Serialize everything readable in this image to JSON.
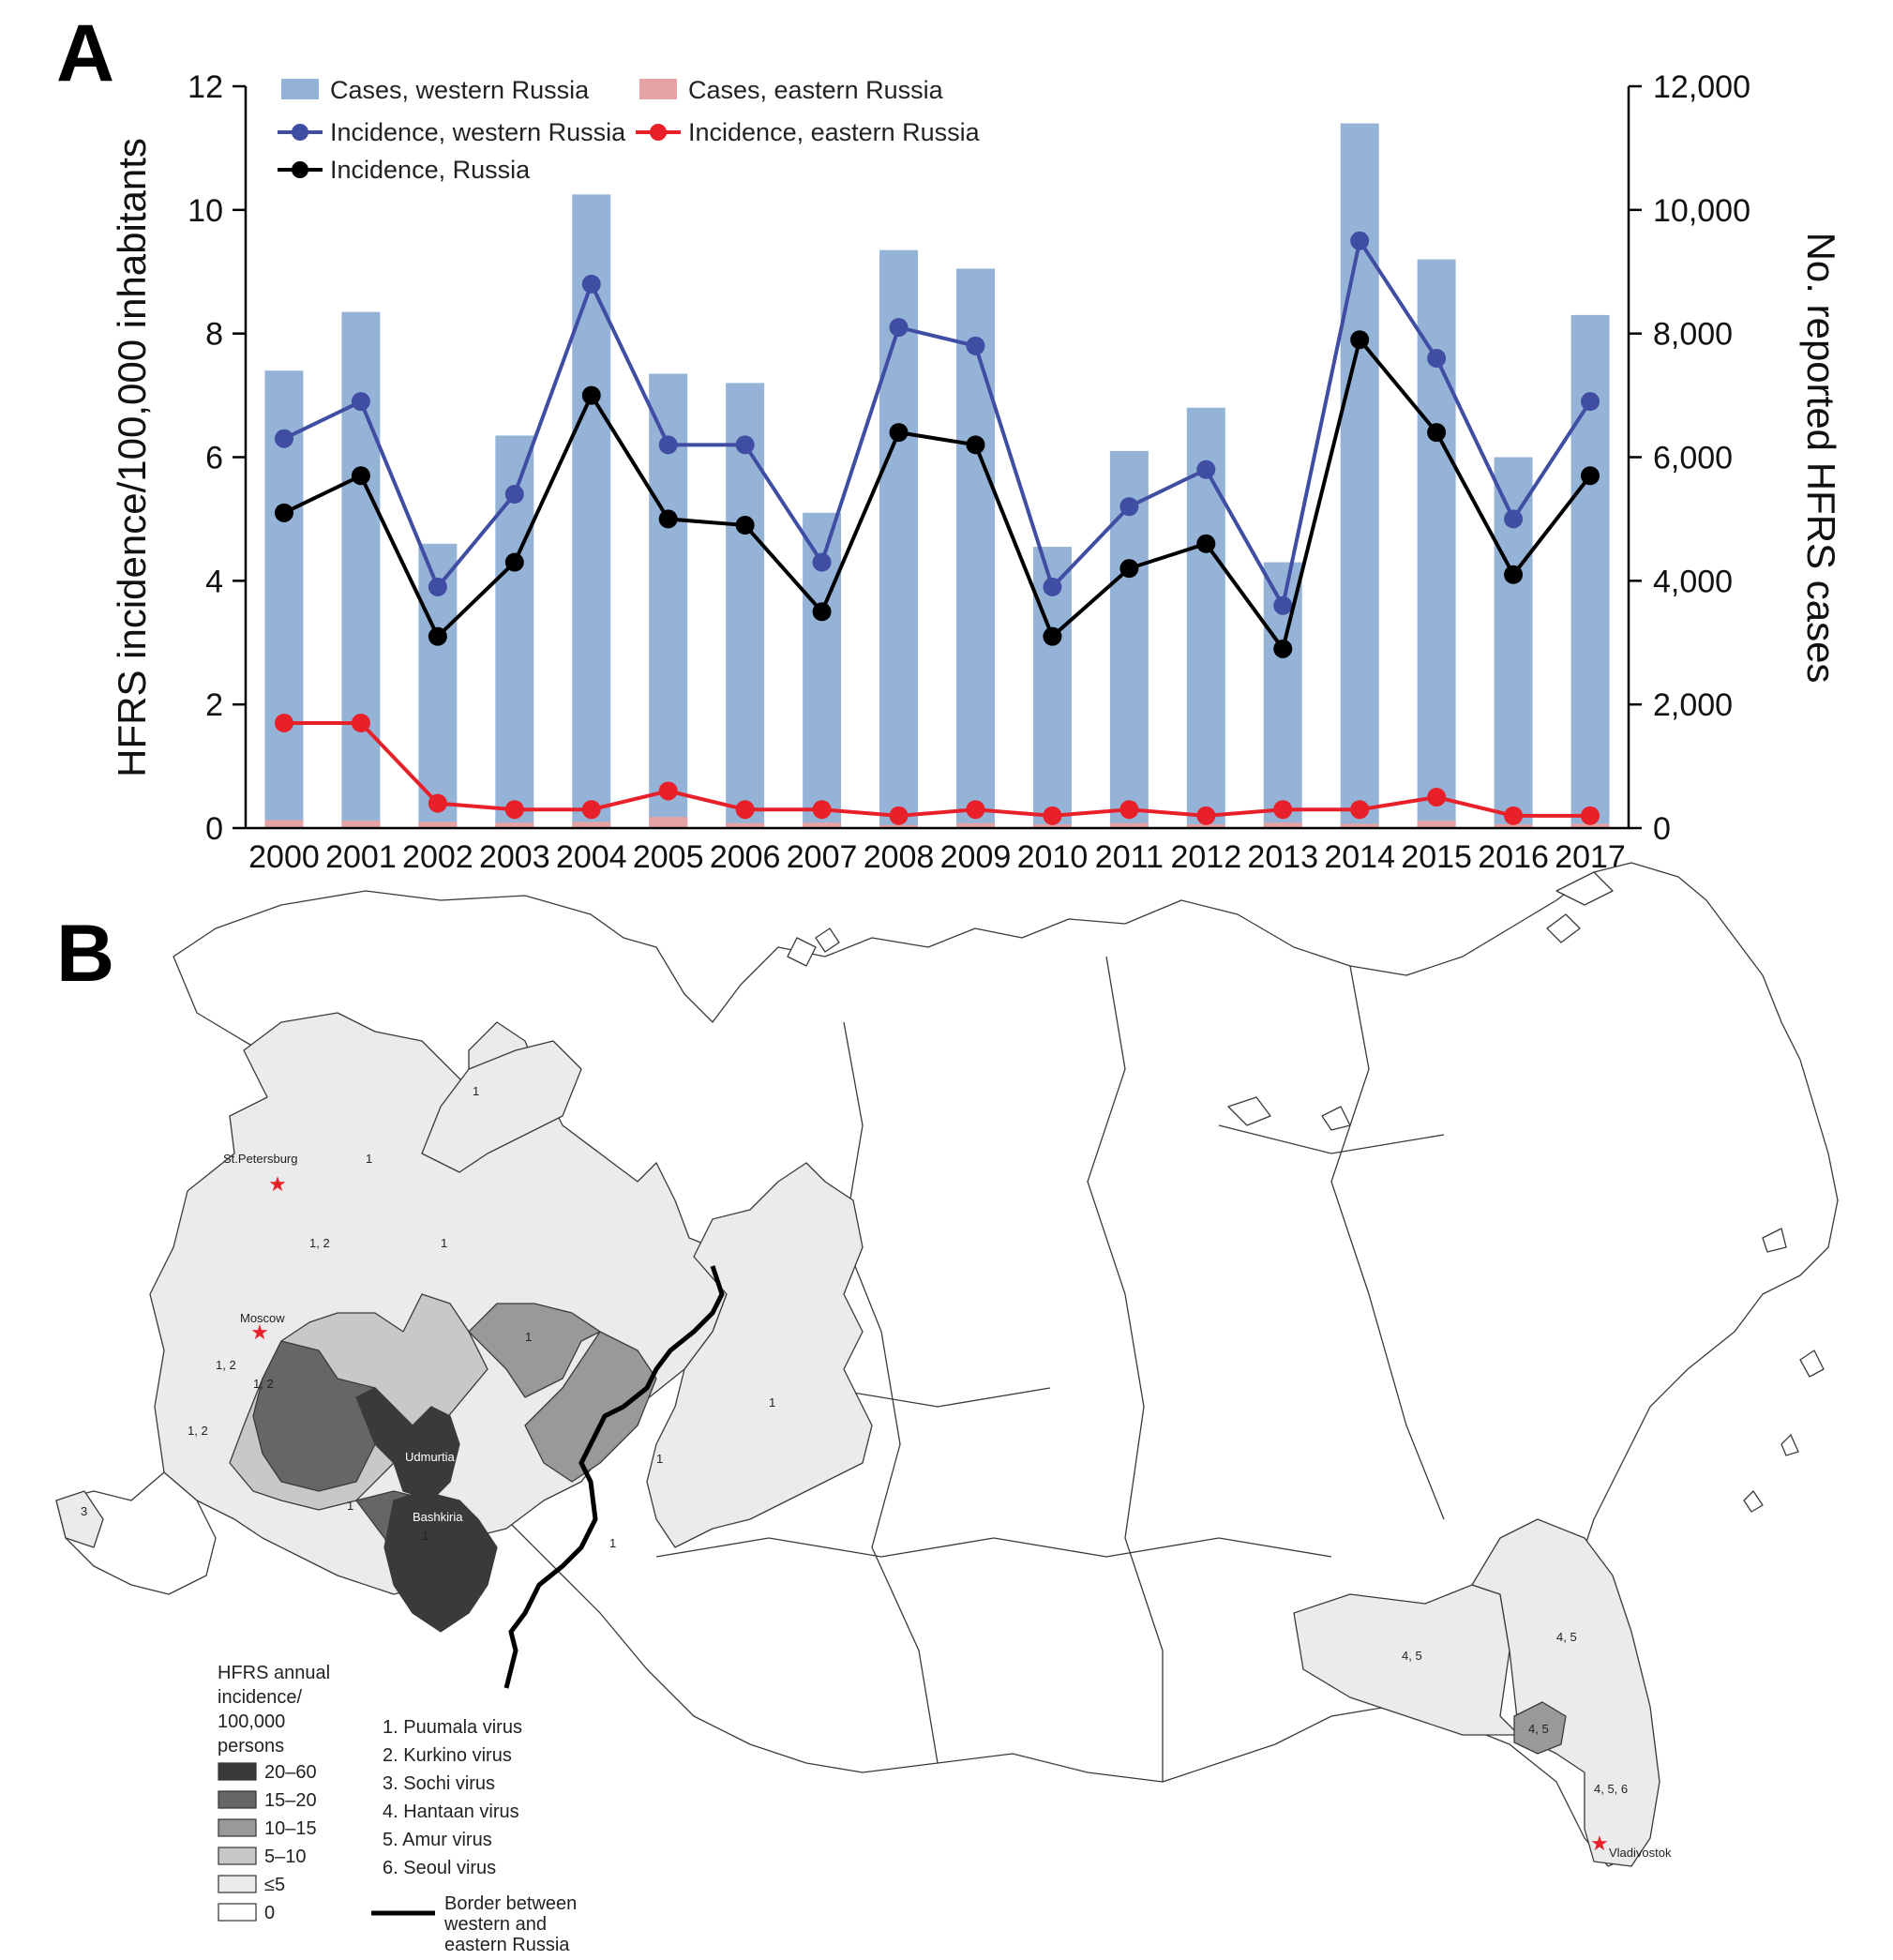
{
  "panel_a_label": "A",
  "panel_b_label": "B",
  "chart_data": {
    "type": "bar",
    "title": "",
    "xlabel": "",
    "ylabel": "HFRS incidence/100,000 inhabitants",
    "y2label": "No. reported HFRS cases",
    "ylim": [
      0,
      12
    ],
    "y2lim": [
      0,
      12000
    ],
    "yticks": [
      "0",
      "2",
      "4",
      "6",
      "8",
      "10",
      "12"
    ],
    "y2ticks": [
      "0",
      "2,000",
      "4,000",
      "6,000",
      "8,000",
      "10,000",
      "12,000"
    ],
    "categories": [
      "2000",
      "2001",
      "2002",
      "2003",
      "2004",
      "2005",
      "2006",
      "2007",
      "2008",
      "2009",
      "2010",
      "2011",
      "2012",
      "2013",
      "2014",
      "2015",
      "2016",
      "2017"
    ],
    "legend_position": "top",
    "series": [
      {
        "name": "Cases, western Russia",
        "kind": "bar",
        "axis": "right",
        "color": "#95b3d7",
        "values": [
          7400,
          8350,
          4600,
          6350,
          10250,
          7350,
          7200,
          5100,
          9350,
          9050,
          4550,
          6100,
          6800,
          4300,
          11400,
          9200,
          6000,
          8300
        ]
      },
      {
        "name": "Cases, eastern Russia",
        "kind": "bar",
        "axis": "right",
        "color": "#e6a3a5",
        "values": [
          130,
          120,
          100,
          90,
          100,
          180,
          80,
          90,
          50,
          80,
          60,
          80,
          60,
          90,
          70,
          120,
          60,
          70
        ]
      },
      {
        "name": "Incidence, western Russia",
        "kind": "line",
        "axis": "left",
        "color": "#3f4da3",
        "values": [
          6.3,
          6.9,
          3.9,
          5.4,
          8.8,
          6.2,
          6.2,
          4.3,
          8.1,
          7.8,
          3.9,
          5.2,
          5.8,
          3.6,
          9.5,
          7.6,
          5.0,
          6.9
        ]
      },
      {
        "name": "Incidence, eastern Russia",
        "kind": "line",
        "axis": "left",
        "color": "#e8202a",
        "values": [
          1.7,
          1.7,
          0.4,
          0.3,
          0.3,
          0.6,
          0.3,
          0.3,
          0.2,
          0.3,
          0.2,
          0.3,
          0.2,
          0.3,
          0.3,
          0.5,
          0.2,
          0.2
        ]
      },
      {
        "name": "Incidence, Russia",
        "kind": "line",
        "axis": "left",
        "color": "#000000",
        "values": [
          5.1,
          5.7,
          3.1,
          4.3,
          7.0,
          5.0,
          4.9,
          3.5,
          6.4,
          6.2,
          3.1,
          4.2,
          4.6,
          2.9,
          7.9,
          6.4,
          4.1,
          5.7
        ]
      }
    ]
  },
  "map": {
    "city_labels": {
      "st_petersburg": "St.Petersburg",
      "moscow": "Moscow",
      "vladivostok": "Vladivostok"
    },
    "region_names": {
      "udmurtia": "Udmurtia",
      "bashkiria": "Bashkiria"
    },
    "virus_codes": [
      "1",
      "1, 2",
      "3",
      "4, 5",
      "4, 5, 6"
    ],
    "legend_title": [
      "HFRS annual",
      "incidence/",
      "100,000",
      "persons"
    ],
    "legend_items": [
      {
        "label": "20–60",
        "color": "#3a3a3a"
      },
      {
        "label": "15–20",
        "color": "#666666"
      },
      {
        "label": "10–15",
        "color": "#999999"
      },
      {
        "label": "5–10",
        "color": "#c8c8c8"
      },
      {
        "label": "≤5",
        "color": "#ebebeb"
      },
      {
        "label": "0",
        "color": "#ffffff"
      }
    ],
    "virus_list": [
      "1. Puumala virus",
      "2. Kurkino virus",
      "3. Sochi virus",
      "4. Hantaan virus",
      "5. Amur virus",
      "6. Seoul virus"
    ],
    "border_label": [
      "Border between",
      "western and",
      "eastern Russia"
    ]
  }
}
